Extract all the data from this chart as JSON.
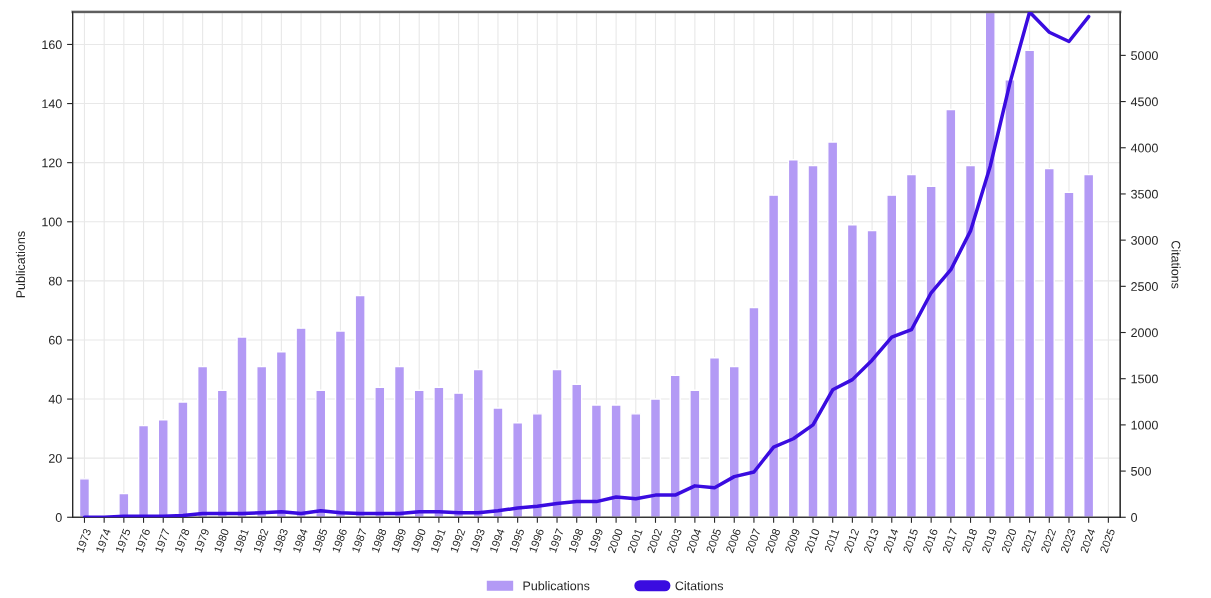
{
  "chart_data": {
    "type": "bar",
    "categories": [
      "1973",
      "1974",
      "1975",
      "1976",
      "1977",
      "1978",
      "1979",
      "1980",
      "1981",
      "1982",
      "1983",
      "1984",
      "1985",
      "1986",
      "1987",
      "1988",
      "1989",
      "1990",
      "1991",
      "1992",
      "1993",
      "1994",
      "1995",
      "1996",
      "1997",
      "1998",
      "1999",
      "2000",
      "2001",
      "2002",
      "2003",
      "2004",
      "2005",
      "2006",
      "2007",
      "2008",
      "2009",
      "2010",
      "2011",
      "2012",
      "2013",
      "2014",
      "2015",
      "2016",
      "2017",
      "2018",
      "2019",
      "2020",
      "2021",
      "2022",
      "2023",
      "2024",
      "2025"
    ],
    "series": [
      {
        "name": "Publications",
        "color": "#b39af5",
        "values": [
          13,
          null,
          8,
          31,
          33,
          39,
          51,
          43,
          61,
          51,
          56,
          64,
          43,
          63,
          75,
          44,
          51,
          43,
          44,
          42,
          50,
          37,
          32,
          35,
          50,
          45,
          38,
          38,
          35,
          40,
          48,
          43,
          54,
          51,
          71,
          109,
          121,
          119,
          127,
          99,
          97,
          109,
          116,
          112,
          138,
          119,
          171,
          148,
          158,
          118,
          110,
          116,
          null
        ]
      },
      {
        "name": "Citations",
        "type": "line",
        "axis": "y2",
        "color": "#3a0ce0",
        "values": [
          0,
          0,
          10,
          10,
          10,
          20,
          40,
          40,
          40,
          50,
          60,
          40,
          70,
          50,
          40,
          40,
          40,
          60,
          60,
          50,
          50,
          70,
          100,
          120,
          150,
          170,
          170,
          220,
          200,
          240,
          240,
          340,
          320,
          440,
          490,
          760,
          850,
          1000,
          1380,
          1490,
          1700,
          1950,
          2030,
          2430,
          2680,
          3100,
          3800,
          4700,
          5470,
          5250,
          5150,
          5420,
          null
        ]
      }
    ],
    "ylabel": "Publications",
    "y2label": "Citations",
    "ylim": [
      0,
      171
    ],
    "yticks": [
      0,
      20,
      40,
      60,
      80,
      100,
      120,
      140,
      160
    ],
    "y2lim": [
      0,
      5470
    ],
    "y2ticks": [
      0,
      500,
      1000,
      1500,
      2000,
      2500,
      3000,
      3500,
      4000,
      4500,
      5000
    ],
    "grid": true,
    "legend": "bottom"
  }
}
